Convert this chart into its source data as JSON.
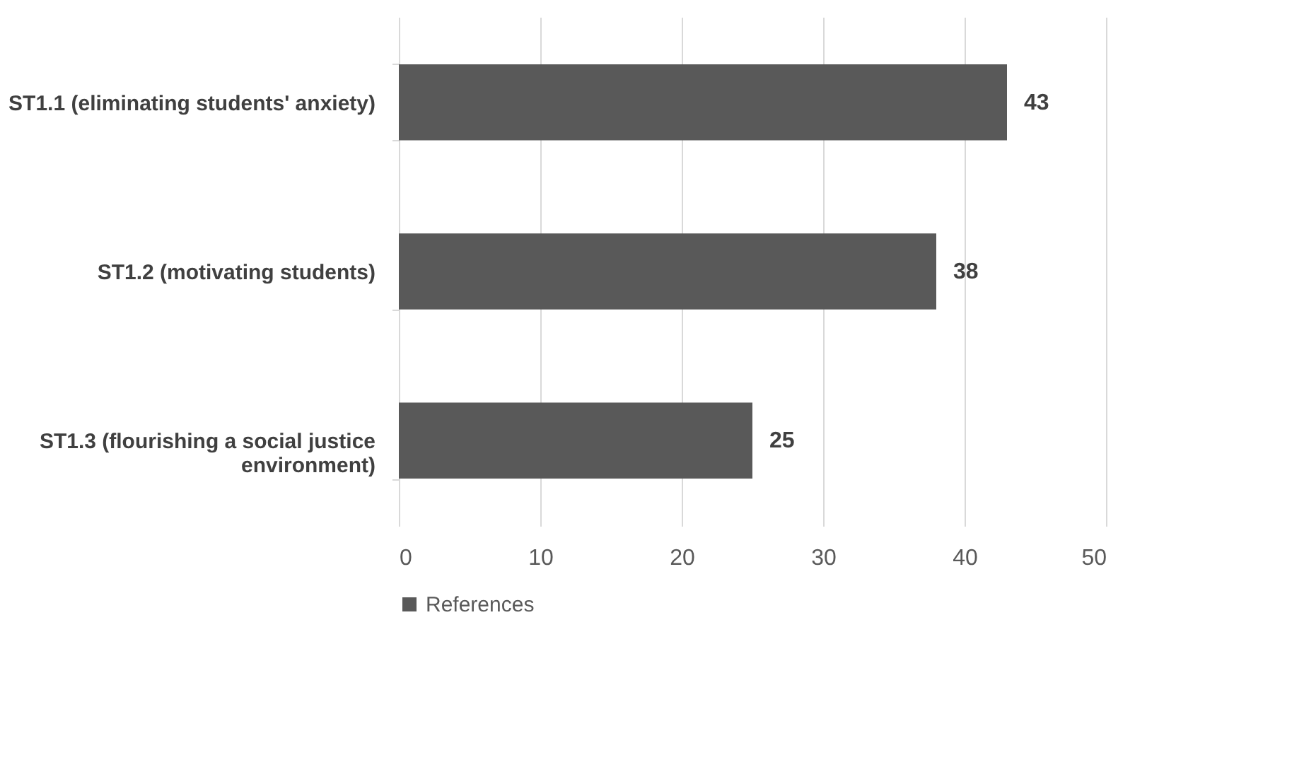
{
  "chart_data": {
    "type": "bar",
    "orientation": "horizontal",
    "categories": [
      "ST1.1 (eliminating students' anxiety)",
      "ST1.2 (motivating students)",
      "ST1.3 (flourishing a social justice environment)"
    ],
    "series": [
      {
        "name": "References",
        "color": "#595959",
        "values": [
          43,
          38,
          25
        ]
      }
    ],
    "xlim": [
      0,
      50
    ],
    "xticks": [
      0,
      10,
      20,
      30,
      40,
      50
    ],
    "grid": "x",
    "legend": "bottom",
    "data_labels": true
  }
}
